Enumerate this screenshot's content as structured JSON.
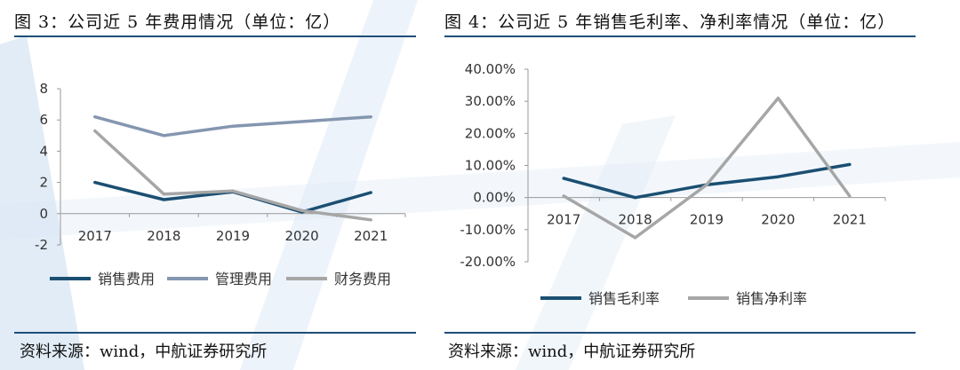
{
  "header": {
    "fig3_title": "图 3：公司近 5 年费用情况（单位：亿）",
    "fig4_title": "图 4：公司近 5 年销售毛利率、净利率情况（单位：亿）"
  },
  "footer": {
    "fig3_source": "资料来源：wind，中航证券研究所",
    "fig4_source": "资料来源：wind，中航证券研究所"
  },
  "colors": {
    "navy": "#1b4f72",
    "steel": "#8496b0",
    "gray": "#a6a6a6",
    "rule": "#1f4e79"
  },
  "chart_data": [
    {
      "type": "line",
      "title": "公司近 5 年费用情况（单位：亿）",
      "x": [
        "2017",
        "2018",
        "2019",
        "2020",
        "2021"
      ],
      "ylim": [
        -2,
        8
      ],
      "yticks": [
        -2,
        0,
        2,
        4,
        6,
        8
      ],
      "ytick_labels": [
        "-2",
        "0",
        "2",
        "4",
        "6",
        "8"
      ],
      "legend_position": "bottom",
      "series": [
        {
          "name": "销售费用",
          "color": "#1b4f72",
          "values": [
            2.0,
            0.9,
            1.4,
            0.1,
            1.35
          ]
        },
        {
          "name": "管理费用",
          "color": "#8496b0",
          "values": [
            6.2,
            5.0,
            5.6,
            5.9,
            6.2
          ]
        },
        {
          "name": "财务费用",
          "color": "#a6a6a6",
          "values": [
            5.3,
            1.25,
            1.45,
            0.2,
            -0.4
          ]
        }
      ]
    },
    {
      "type": "line",
      "title": "公司近 5 年销售毛利率、净利率情况",
      "x": [
        "2017",
        "2018",
        "2019",
        "2020",
        "2021"
      ],
      "ylim": [
        -20,
        40
      ],
      "yticks": [
        -20,
        -10,
        0,
        10,
        20,
        30,
        40
      ],
      "ytick_labels": [
        "-20.00%",
        "-10.00%",
        "0.00%",
        "10.00%",
        "20.00%",
        "30.00%",
        "40.00%"
      ],
      "legend_position": "bottom",
      "series": [
        {
          "name": "销售毛利率",
          "color": "#1b4f72",
          "values": [
            6.0,
            0.0,
            4.0,
            6.5,
            10.3
          ]
        },
        {
          "name": "销售净利率",
          "color": "#a6a6a6",
          "values": [
            0.5,
            -12.5,
            4.0,
            31.0,
            0.5
          ]
        }
      ]
    }
  ]
}
